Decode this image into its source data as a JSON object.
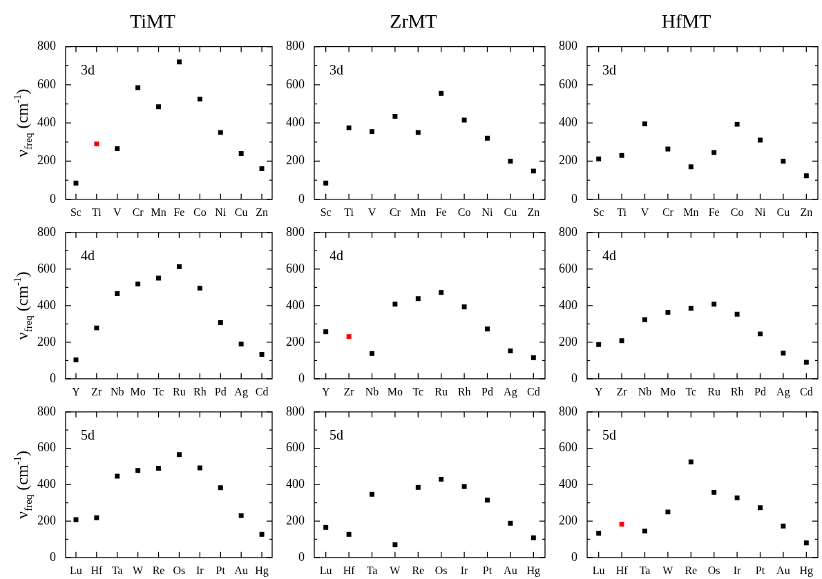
{
  "chart_data": [
    {
      "type": "scatter",
      "marker": "square",
      "title": "TiMT",
      "ylabel": "ν$_{freq}$ (cm$^{-1}$)",
      "annotations": [
        "3d"
      ],
      "categories": [
        "Sc",
        "Ti",
        "V",
        "Cr",
        "Mn",
        "Fe",
        "Co",
        "Ni",
        "Cu",
        "Zn"
      ],
      "values": [
        85,
        290,
        265,
        585,
        485,
        720,
        525,
        350,
        240,
        160
      ],
      "colors": [
        "#000000",
        "#ff0000",
        "#000000",
        "#000000",
        "#000000",
        "#000000",
        "#000000",
        "#000000",
        "#000000",
        "#000000"
      ],
      "ylim": [
        0,
        800
      ],
      "yticks": [
        0,
        {
          "value": 100,
          "label": null
        },
        200,
        {
          "value": 300,
          "label": null
        },
        400,
        {
          "value": 500,
          "label": null
        },
        600,
        {
          "value": 700,
          "label": null
        },
        800
      ]
    },
    {
      "type": "scatter",
      "marker": "square",
      "title": "ZrMT",
      "annotations": [
        "3d"
      ],
      "categories": [
        "Sc",
        "Ti",
        "V",
        "Cr",
        "Mn",
        "Fe",
        "Co",
        "Ni",
        "Cu",
        "Zn"
      ],
      "values": [
        85,
        375,
        355,
        435,
        350,
        555,
        415,
        320,
        200,
        148
      ],
      "colors": [
        "#000000",
        "#000000",
        "#000000",
        "#000000",
        "#000000",
        "#000000",
        "#000000",
        "#000000",
        "#000000",
        "#000000"
      ],
      "ylim": [
        0,
        800
      ],
      "yticks": [
        0,
        {
          "value": 100,
          "label": null
        },
        200,
        {
          "value": 300,
          "label": null
        },
        400,
        {
          "value": 500,
          "label": null
        },
        600,
        {
          "value": 700,
          "label": null
        },
        800
      ]
    },
    {
      "type": "scatter",
      "marker": "square",
      "title": "HfMT",
      "annotations": [
        "3d"
      ],
      "categories": [
        "Sc",
        "Ti",
        "V",
        "Cr",
        "Mn",
        "Fe",
        "Co",
        "Ni",
        "Cu",
        "Zn"
      ],
      "values": [
        212,
        230,
        395,
        263,
        170,
        245,
        393,
        310,
        200,
        123
      ],
      "colors": [
        "#000000",
        "#000000",
        "#000000",
        "#000000",
        "#000000",
        "#000000",
        "#000000",
        "#000000",
        "#000000",
        "#000000"
      ],
      "ylim": [
        0,
        800
      ],
      "yticks": [
        0,
        {
          "value": 100,
          "label": null
        },
        200,
        {
          "value": 300,
          "label": null
        },
        400,
        {
          "value": 500,
          "label": null
        },
        600,
        {
          "value": 700,
          "label": null
        },
        800
      ]
    },
    {
      "type": "scatter",
      "marker": "square",
      "ylabel": "ν$_{freq}$ (cm$^{-1}$)",
      "annotations": [
        "4d"
      ],
      "categories": [
        "Y",
        "Zr",
        "Nb",
        "Mo",
        "Tc",
        "Ru",
        "Rh",
        "Pd",
        "Ag",
        "Cd"
      ],
      "values": [
        103,
        278,
        465,
        518,
        550,
        613,
        495,
        307,
        190,
        133
      ],
      "colors": [
        "#000000",
        "#000000",
        "#000000",
        "#000000",
        "#000000",
        "#000000",
        "#000000",
        "#000000",
        "#000000",
        "#000000"
      ],
      "ylim": [
        0,
        800
      ],
      "yticks": [
        0,
        {
          "value": 100,
          "label": null
        },
        200,
        {
          "value": 300,
          "label": null
        },
        400,
        {
          "value": 500,
          "label": null
        },
        600,
        {
          "value": 700,
          "label": null
        },
        800
      ]
    },
    {
      "type": "scatter",
      "marker": "square",
      "annotations": [
        "4d"
      ],
      "categories": [
        "Y",
        "Zr",
        "Nb",
        "Mo",
        "Tc",
        "Ru",
        "Rh",
        "Pd",
        "Ag",
        "Cd"
      ],
      "values": [
        257,
        230,
        138,
        408,
        438,
        472,
        393,
        272,
        152,
        115
      ],
      "colors": [
        "#000000",
        "#ff0000",
        "#000000",
        "#000000",
        "#000000",
        "#000000",
        "#000000",
        "#000000",
        "#000000",
        "#000000"
      ],
      "ylim": [
        0,
        800
      ],
      "yticks": [
        0,
        {
          "value": 100,
          "label": null
        },
        200,
        {
          "value": 300,
          "label": null
        },
        400,
        {
          "value": 500,
          "label": null
        },
        600,
        {
          "value": 700,
          "label": null
        },
        800
      ]
    },
    {
      "type": "scatter",
      "marker": "square",
      "annotations": [
        "4d"
      ],
      "categories": [
        "Y",
        "Zr",
        "Nb",
        "Mo",
        "Tc",
        "Ru",
        "Rh",
        "Pd",
        "Ag",
        "Cd"
      ],
      "values": [
        187,
        208,
        323,
        363,
        385,
        408,
        353,
        245,
        140,
        90
      ],
      "colors": [
        "#000000",
        "#000000",
        "#000000",
        "#000000",
        "#000000",
        "#000000",
        "#000000",
        "#000000",
        "#000000",
        "#000000"
      ],
      "ylim": [
        0,
        800
      ],
      "yticks": [
        0,
        {
          "value": 100,
          "label": null
        },
        200,
        {
          "value": 300,
          "label": null
        },
        400,
        {
          "value": 500,
          "label": null
        },
        600,
        {
          "value": 700,
          "label": null
        },
        800
      ]
    },
    {
      "type": "scatter",
      "marker": "square",
      "ylabel": "ν$_{freq}$ (cm$^{-1}$)",
      "annotations": [
        "5d"
      ],
      "categories": [
        "Lu",
        "Hf",
        "Ta",
        "W",
        "Re",
        "Os",
        "Ir",
        "Pt",
        "Au",
        "Hg"
      ],
      "values": [
        208,
        218,
        447,
        478,
        490,
        565,
        492,
        383,
        230,
        127
      ],
      "colors": [
        "#000000",
        "#000000",
        "#000000",
        "#000000",
        "#000000",
        "#000000",
        "#000000",
        "#000000",
        "#000000",
        "#000000"
      ],
      "ylim": [
        0,
        800
      ],
      "yticks": [
        0,
        {
          "value": 100,
          "label": null
        },
        200,
        {
          "value": 300,
          "label": null
        },
        400,
        {
          "value": 500,
          "label": null
        },
        600,
        {
          "value": 700,
          "label": null
        },
        800
      ]
    },
    {
      "type": "scatter",
      "marker": "square",
      "annotations": [
        "5d"
      ],
      "categories": [
        "Lu",
        "Hf",
        "Ta",
        "W",
        "Re",
        "Os",
        "Ir",
        "Pt",
        "Au",
        "Hg"
      ],
      "values": [
        165,
        127,
        347,
        70,
        385,
        430,
        390,
        315,
        188,
        108
      ],
      "colors": [
        "#000000",
        "#000000",
        "#000000",
        "#000000",
        "#000000",
        "#000000",
        "#000000",
        "#000000",
        "#000000",
        "#000000"
      ],
      "ylim": [
        0,
        800
      ],
      "yticks": [
        0,
        {
          "value": 100,
          "label": null
        },
        200,
        {
          "value": 300,
          "label": null
        },
        400,
        {
          "value": 500,
          "label": null
        },
        600,
        {
          "value": 700,
          "label": null
        },
        800
      ]
    },
    {
      "type": "scatter",
      "marker": "square",
      "annotations": [
        "5d"
      ],
      "categories": [
        "Lu",
        "Hf",
        "Ta",
        "W",
        "Re",
        "Os",
        "Ir",
        "Pt",
        "Au",
        "Hg"
      ],
      "values": [
        133,
        183,
        145,
        250,
        525,
        358,
        327,
        273,
        173,
        80
      ],
      "colors": [
        "#000000",
        "#ff0000",
        "#000000",
        "#000000",
        "#000000",
        "#000000",
        "#000000",
        "#000000",
        "#000000",
        "#000000"
      ],
      "ylim": [
        0,
        800
      ],
      "yticks": [
        0,
        {
          "value": 100,
          "label": null
        },
        200,
        {
          "value": 300,
          "label": null
        },
        400,
        {
          "value": 500,
          "label": null
        },
        600,
        {
          "value": 700,
          "label": null
        },
        800
      ]
    }
  ]
}
